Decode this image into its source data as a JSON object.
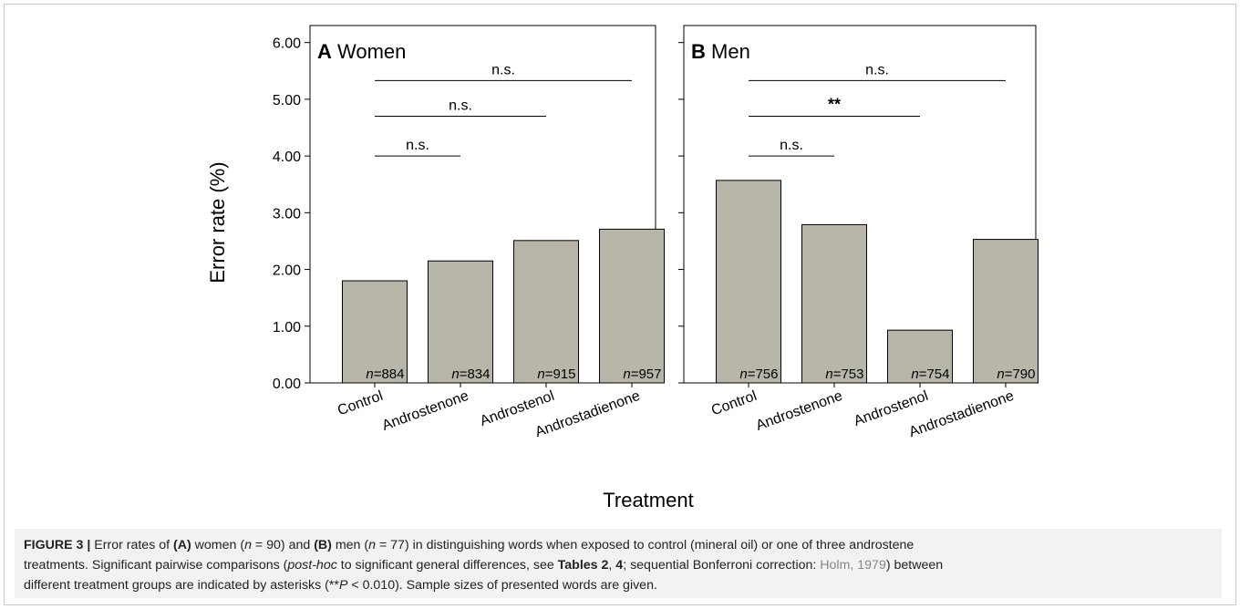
{
  "chart_data": [
    {
      "type": "bar",
      "panel_letter": "A",
      "title": "Women",
      "categories": [
        "Control",
        "Androstenone",
        "Androstenol",
        "Androstadienone"
      ],
      "values": [
        1.8,
        2.15,
        2.51,
        2.71
      ],
      "n_prefix": "n",
      "n_values": [
        "=884",
        "=834",
        "=915",
        "=957"
      ],
      "ylim": [
        0,
        6.3
      ],
      "yticks": [
        "0.00",
        "1.00",
        "2.00",
        "3.00",
        "4.00",
        "5.00",
        "6.00"
      ],
      "ylabel": "Error rate (%)",
      "bar_color": "#b7b6a9",
      "comparisons": [
        {
          "from": "Control",
          "to": "Androstenone",
          "label": "n.s."
        },
        {
          "from": "Control",
          "to": "Androstenol",
          "label": "n.s."
        },
        {
          "from": "Control",
          "to": "Androstadienone",
          "label": "n.s."
        }
      ]
    },
    {
      "type": "bar",
      "panel_letter": "B",
      "title": "Men",
      "categories": [
        "Control",
        "Androstenone",
        "Androstenol",
        "Androstadienone"
      ],
      "values": [
        3.57,
        2.79,
        0.93,
        2.53
      ],
      "n_prefix": "n",
      "n_values": [
        "=756",
        "=753",
        "=754",
        "=790"
      ],
      "ylim": [
        0,
        6.3
      ],
      "bar_color": "#b7b6a9",
      "comparisons": [
        {
          "from": "Control",
          "to": "Androstenone",
          "label": "n.s."
        },
        {
          "from": "Control",
          "to": "Androstenol",
          "label": "**"
        },
        {
          "from": "Control",
          "to": "Androstadienone",
          "label": "n.s."
        }
      ]
    }
  ],
  "xlabel": "Treatment",
  "caption": {
    "label": "FIGURE 3 |",
    "line1": {
      "t1": " Error rates of ",
      "b1": "(A)",
      "t2": " women (",
      "i1": "n",
      "t3": " = 90) and ",
      "b2": "(B)",
      "t4": " men (",
      "i2": "n",
      "t5": " = 77) in distinguishing words when exposed to control (mineral oil) or one of three androstene"
    },
    "line2": {
      "t1": "treatments. Significant pairwise comparisons (",
      "i1": "post-hoc",
      "t2": " to significant general differences, see ",
      "b1": "Tables 2",
      "t3": ", ",
      "b2": "4",
      "t4": "; sequential Bonferroni correction: ",
      "ref": "Holm, 1979",
      "t5": ") between"
    },
    "line3": {
      "t1": "different treatment groups are indicated by asterisks (**",
      "i1": "P",
      "t2": " < 0.010). Sample sizes of presented words are given."
    }
  }
}
